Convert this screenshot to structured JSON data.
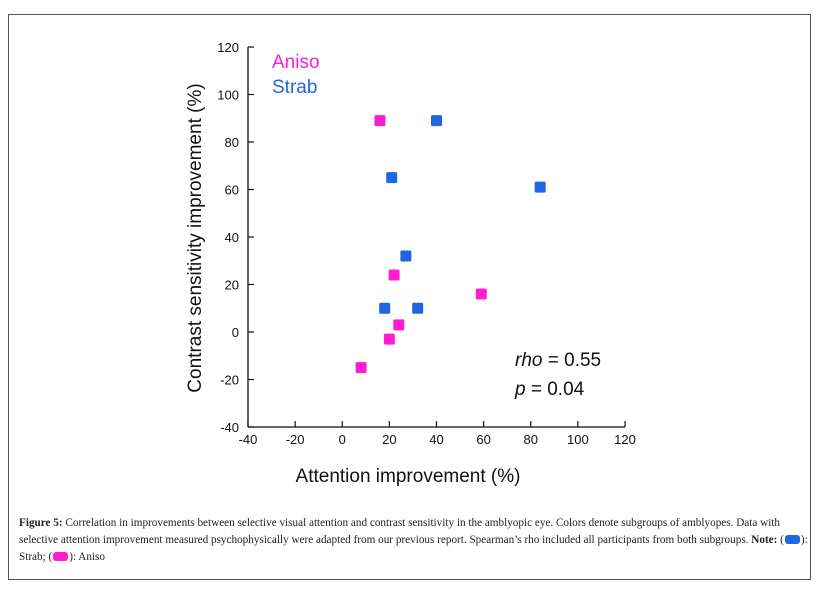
{
  "chart_data": {
    "type": "scatter",
    "xlabel": "Attention improvement (%)",
    "ylabel": "Contrast sensitivity improvement (%)",
    "xlim": [
      -40,
      120
    ],
    "ylim": [
      -40,
      120
    ],
    "xticks": [
      -40,
      -20,
      0,
      20,
      40,
      60,
      80,
      100,
      120
    ],
    "yticks": [
      -40,
      -20,
      0,
      20,
      40,
      60,
      80,
      100,
      120
    ],
    "grid": false,
    "legend_position": "top-left",
    "series": [
      {
        "name": "Aniso",
        "color": "#ff1ecf",
        "points": [
          {
            "x": 16,
            "y": 89
          },
          {
            "x": 22,
            "y": 24
          },
          {
            "x": 59,
            "y": 16
          },
          {
            "x": 24,
            "y": 3
          },
          {
            "x": 20,
            "y": -3
          },
          {
            "x": 8,
            "y": -15
          }
        ]
      },
      {
        "name": "Strab",
        "color": "#1f66e0",
        "points": [
          {
            "x": 40,
            "y": 89
          },
          {
            "x": 21,
            "y": 65
          },
          {
            "x": 84,
            "y": 61
          },
          {
            "x": 27,
            "y": 32
          },
          {
            "x": 18,
            "y": 10
          },
          {
            "x": 32,
            "y": 10
          }
        ]
      }
    ],
    "annotation": {
      "rho_label": "rho",
      "rho_value": " = 0.55",
      "p_label": "p",
      "p_value": " = 0.04"
    }
  },
  "caption": {
    "figure_label": "Figure 5:",
    "text": " Correlation in improvements between selective visual attention and contrast sensitivity in the amblyopic eye. Colors denote subgroups of amblyopes. Data with selective attention improvement measured psychophysically were adapted from our previous report. Spearman’s rho included all participants from both subgroups.",
    "note_label": "Note:",
    "note_open": " (",
    "note_strab": "): Strab; (",
    "note_aniso": "): Aniso"
  }
}
